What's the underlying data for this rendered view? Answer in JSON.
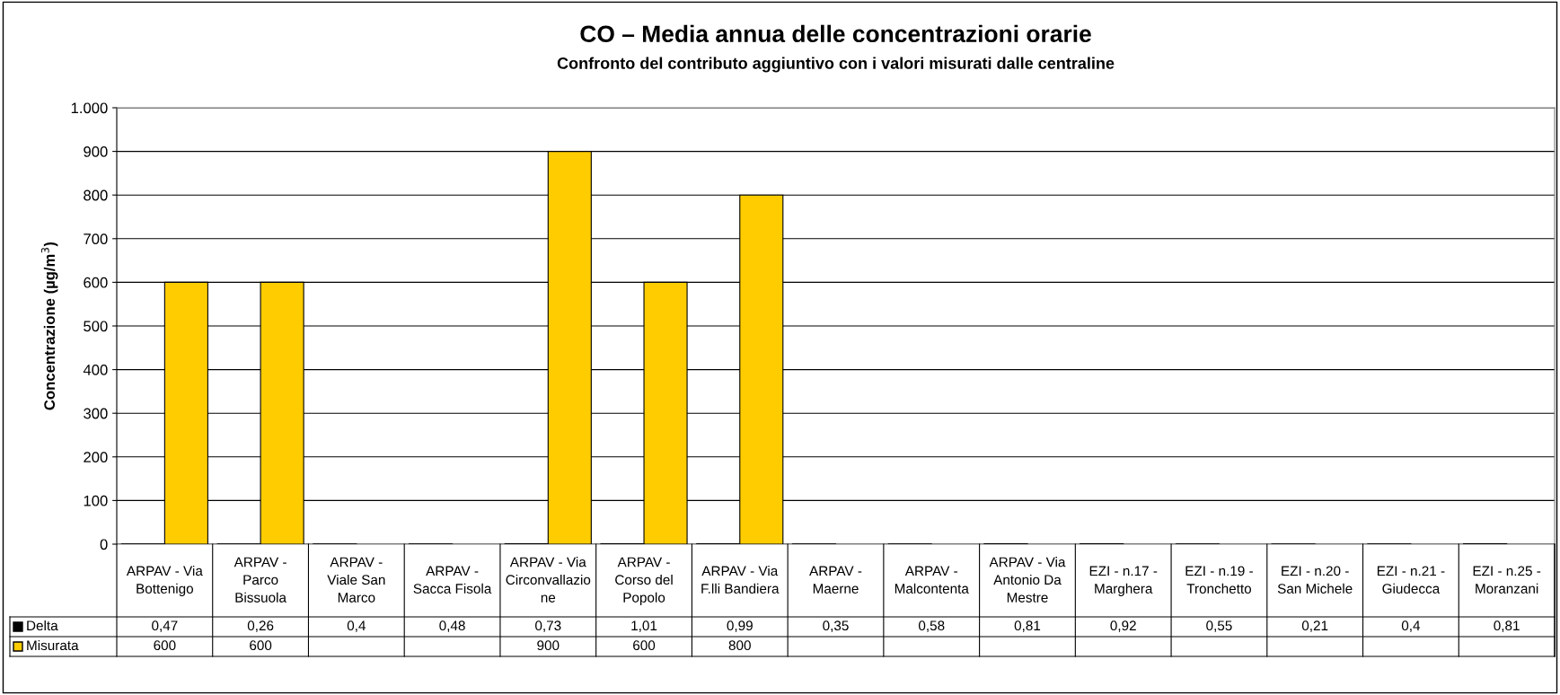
{
  "chart_data": {
    "type": "bar",
    "title": "CO – Media annua delle concentrazioni orarie",
    "subtitle": "Confronto del contributo aggiuntivo con i valori misurati dalle centraline",
    "ylabel": "Concentrazione (µg/m$^{3}$)",
    "categories": [
      "ARPAV - Via\nBottenigo",
      "ARPAV -\nParco\nBissuola",
      "ARPAV -\nViale San\nMarco",
      "ARPAV -\nSacca Fisola",
      "ARPAV - Via\nCirconvallazio\nne",
      "ARPAV -\nCorso del\nPopolo",
      "ARPAV - Via\nF.lli Bandiera",
      "ARPAV -\nMaerne",
      "ARPAV -\nMalcontenta",
      "ARPAV - Via\nAntonio Da\nMestre",
      "EZI - n.17 -\nMarghera",
      "EZI - n.19 -\nTronchetto",
      "EZI - n.20 -\nSan Michele",
      "EZI - n.21 -\nGiudecca",
      "EZI - n.25 -\nMoranzani"
    ],
    "series": [
      {
        "name": "Delta",
        "color": "#000000",
        "values": [
          0.47,
          0.26,
          0.4,
          0.48,
          0.73,
          1.01,
          0.99,
          0.35,
          0.58,
          0.81,
          0.92,
          0.55,
          0.21,
          0.4,
          0.81
        ],
        "value_labels": [
          "0,47",
          "0,26",
          "0,4",
          "0,48",
          "0,73",
          "1,01",
          "0,99",
          "0,35",
          "0,58",
          "0,81",
          "0,92",
          "0,55",
          "0,21",
          "0,4",
          "0,81"
        ]
      },
      {
        "name": "Misurata",
        "color": "#ffcc00",
        "values": [
          600,
          600,
          null,
          null,
          900,
          600,
          800,
          null,
          null,
          null,
          null,
          null,
          null,
          null,
          null
        ],
        "value_labels": [
          "600",
          "600",
          null,
          null,
          "900",
          "600",
          "800",
          null,
          null,
          null,
          null,
          null,
          null,
          null,
          null
        ]
      }
    ],
    "ylim": [
      0,
      1000
    ],
    "yticks": [
      0,
      100,
      200,
      300,
      400,
      500,
      600,
      700,
      800,
      900,
      {
        "value": 1000,
        "label": "1.000"
      }
    ],
    "grid": "y",
    "legend": "bottom"
  }
}
